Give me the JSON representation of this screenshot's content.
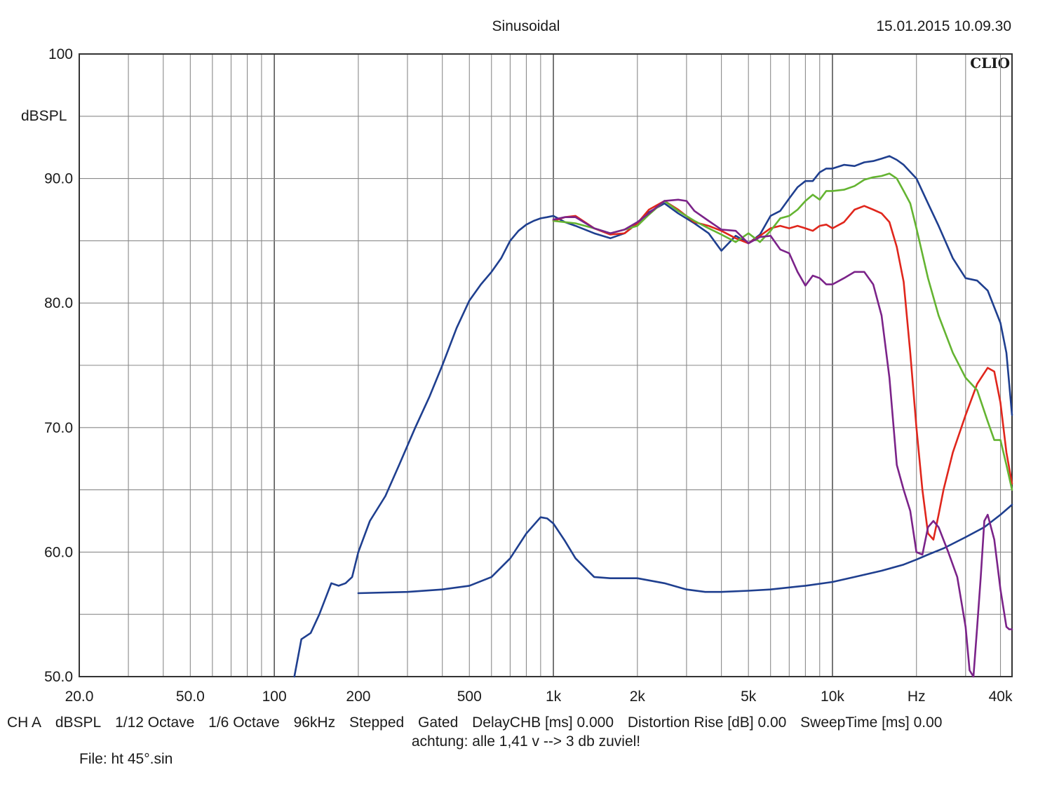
{
  "chart_data": {
    "type": "line",
    "title": "Sinusoidal",
    "timestamp": "15.01.2015 10.09.30",
    "brand": "CLIO",
    "ylabel": "dBSPL",
    "xscale": "log",
    "xlim": [
      20,
      44000
    ],
    "ylim": [
      50,
      100
    ],
    "grid": true,
    "x_tick_labels": [
      {
        "x": 20,
        "label": "20.0"
      },
      {
        "x": 50,
        "label": "50.0"
      },
      {
        "x": 100,
        "label": "100"
      },
      {
        "x": 200,
        "label": "200"
      },
      {
        "x": 500,
        "label": "500"
      },
      {
        "x": 1000,
        "label": "1k"
      },
      {
        "x": 2000,
        "label": "2k"
      },
      {
        "x": 5000,
        "label": "5k"
      },
      {
        "x": 10000,
        "label": "10k"
      },
      {
        "x": 20000,
        "label": "Hz"
      },
      {
        "x": 40000,
        "label": "40k"
      }
    ],
    "y_tick_labels": [
      {
        "y": 100,
        "label": "100"
      },
      {
        "y": 90,
        "label": "90.0"
      },
      {
        "y": 80,
        "label": "80.0"
      },
      {
        "y": 70,
        "label": "70.0"
      },
      {
        "y": 60,
        "label": "60.0"
      },
      {
        "y": 50,
        "label": "50.0"
      }
    ],
    "series": [
      {
        "color": "#1f3f8f",
        "x": [
          118,
          125,
          135,
          145,
          160,
          170,
          180,
          190,
          200,
          220,
          250,
          280,
          320,
          360,
          400,
          450,
          500,
          550,
          600,
          650,
          700,
          750,
          800,
          850,
          900,
          950,
          1000,
          1100,
          1200,
          1400,
          1600,
          1800,
          2000,
          2200,
          2500,
          2800,
          3200,
          3600,
          4000,
          4500,
          5000,
          5500,
          6000,
          6500,
          7000,
          7500,
          8000,
          8500,
          9000,
          9500,
          10000,
          11000,
          12000,
          13000,
          14000,
          15000,
          16000,
          17000,
          18000,
          20000,
          22000,
          24000,
          27000,
          30000,
          33000,
          36000,
          40000,
          42000,
          44000
        ],
        "y": [
          50,
          53,
          53.5,
          55,
          57.5,
          57.3,
          57.5,
          58,
          60,
          62.5,
          64.5,
          67,
          70,
          72.5,
          75,
          78,
          80.2,
          81.5,
          82.5,
          83.6,
          85,
          85.8,
          86.3,
          86.6,
          86.8,
          86.9,
          87,
          86.5,
          86.2,
          85.6,
          85.2,
          85.6,
          86.4,
          87.3,
          88,
          87.2,
          86.4,
          85.6,
          84.2,
          85.4,
          84.8,
          85.5,
          87,
          87.4,
          88.4,
          89.3,
          89.8,
          89.8,
          90.5,
          90.8,
          90.8,
          91.1,
          91,
          91.3,
          91.4,
          91.6,
          91.8,
          91.5,
          91.1,
          90,
          88,
          86.2,
          83.6,
          82,
          81.8,
          81,
          78.4,
          76,
          71
        ]
      },
      {
        "color": "#1f3f8f",
        "x": [
          200,
          300,
          400,
          500,
          600,
          700,
          800,
          900,
          950,
          1000,
          1100,
          1200,
          1400,
          1600,
          2000,
          2500,
          3000,
          3500,
          4000,
          5000,
          6000,
          8000,
          10000,
          12000,
          15000,
          18000,
          20000,
          22000,
          25000,
          30000,
          35000,
          40000,
          44000
        ],
        "y": [
          56.7,
          56.8,
          57,
          57.3,
          58,
          59.5,
          61.5,
          62.8,
          62.7,
          62.3,
          60.9,
          59.5,
          58,
          57.9,
          57.9,
          57.5,
          57,
          56.8,
          56.8,
          56.9,
          57,
          57.3,
          57.6,
          58,
          58.5,
          59,
          59.4,
          59.8,
          60.3,
          61.2,
          62,
          63,
          63.8
        ]
      },
      {
        "color": "#e0261c",
        "x": [
          1000,
          1100,
          1200,
          1400,
          1600,
          1800,
          2000,
          2200,
          2500,
          2800,
          3200,
          3600,
          4000,
          4500,
          5000,
          5500,
          6000,
          6500,
          7000,
          7500,
          8000,
          8500,
          9000,
          9500,
          10000,
          11000,
          12000,
          13000,
          14000,
          15000,
          16000,
          17000,
          18000,
          19000,
          20000,
          21000,
          22000,
          23000,
          24000,
          25000,
          27000,
          30000,
          33000,
          36000,
          38000,
          40000,
          42000,
          44000
        ],
        "y": [
          86.6,
          86.9,
          87,
          86,
          85.5,
          85.6,
          86.4,
          87.5,
          88.2,
          87.5,
          86.5,
          86.2,
          85.8,
          85.2,
          84.8,
          85.4,
          86,
          86.2,
          86,
          86.2,
          86,
          85.8,
          86.2,
          86.3,
          86,
          86.5,
          87.5,
          87.8,
          87.5,
          87.2,
          86.5,
          84.5,
          81.7,
          76,
          70,
          65,
          61.5,
          61,
          63,
          65,
          68,
          71,
          73.5,
          74.8,
          74.5,
          72,
          68,
          65.5
        ]
      },
      {
        "color": "#64b431",
        "x": [
          1000,
          1100,
          1200,
          1400,
          1600,
          1800,
          2000,
          2200,
          2500,
          2800,
          3200,
          3600,
          4000,
          4500,
          5000,
          5500,
          6000,
          6500,
          7000,
          7500,
          8000,
          8500,
          9000,
          9500,
          10000,
          11000,
          12000,
          13000,
          14000,
          15000,
          16000,
          17000,
          18000,
          19000,
          20000,
          22000,
          24000,
          27000,
          30000,
          33000,
          36000,
          38000,
          40000,
          42000,
          44000
        ],
        "y": [
          86.6,
          86.5,
          86.4,
          86,
          85.6,
          85.9,
          86.2,
          87.1,
          88.2,
          87.4,
          86.6,
          86,
          85.5,
          84.9,
          85.6,
          84.9,
          85.8,
          86.8,
          87,
          87.5,
          88.2,
          88.7,
          88.3,
          89,
          89,
          89.1,
          89.4,
          89.9,
          90.1,
          90.2,
          90.4,
          90,
          89,
          88,
          86,
          82,
          79,
          76,
          74,
          73,
          70.5,
          69,
          69,
          67,
          65
        ]
      },
      {
        "color": "#7b2389",
        "x": [
          1000,
          1100,
          1200,
          1400,
          1600,
          1800,
          2000,
          2200,
          2500,
          2800,
          3000,
          3200,
          3600,
          4000,
          4500,
          5000,
          5500,
          6000,
          6500,
          7000,
          7500,
          8000,
          8500,
          9000,
          9500,
          10000,
          11000,
          12000,
          13000,
          14000,
          15000,
          16000,
          17000,
          18000,
          19000,
          20000,
          21000,
          22000,
          23000,
          24000,
          26000,
          28000,
          30000,
          31000,
          32000,
          33000,
          34000,
          35000,
          36000,
          38000,
          40000,
          42000,
          43000,
          44000
        ],
        "y": [
          86.7,
          86.9,
          86.9,
          86,
          85.6,
          85.9,
          86.5,
          87.2,
          88.2,
          88.3,
          88.2,
          87.4,
          86.6,
          85.9,
          85.8,
          84.8,
          85.3,
          85.4,
          84.3,
          84,
          82.5,
          81.4,
          82.2,
          82,
          81.5,
          81.5,
          82,
          82.5,
          82.5,
          81.5,
          79,
          74,
          67,
          65,
          63.3,
          60,
          59.8,
          62,
          62.5,
          62,
          60,
          58,
          54,
          50.5,
          50,
          54,
          58,
          62.5,
          63,
          61,
          57,
          54,
          53.8,
          53.8
        ]
      }
    ]
  },
  "bottom_params": [
    "CH A",
    "dBSPL",
    "1/12 Octave",
    "1/6 Octave",
    "96kHz",
    "Stepped",
    "Gated",
    "DelayCHB [ms] 0.000",
    "Distortion Rise [dB] 0.00",
    "SweepTime [ms] 0.00"
  ],
  "note": "achtung: alle 1,41 v --> 3 db zuviel!",
  "file": "File: ht 45°.sin"
}
